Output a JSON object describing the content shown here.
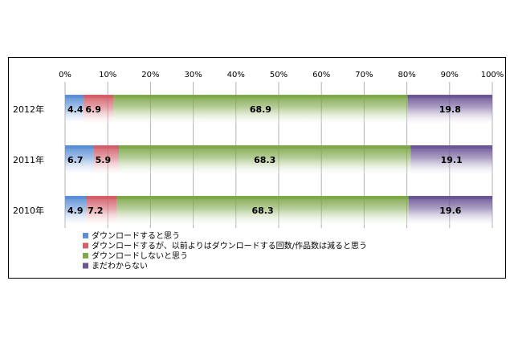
{
  "chart_data": {
    "type": "bar",
    "orientation": "horizontal",
    "stacked": "percent",
    "title": "",
    "xlabel": "",
    "ylabel": "",
    "xlim": [
      0,
      100
    ],
    "ticks": [
      "0%",
      "10%",
      "20%",
      "30%",
      "40%",
      "50%",
      "60%",
      "70%",
      "80%",
      "90%",
      "100%"
    ],
    "grid": true,
    "legend_position": "bottom-left",
    "categories": [
      "2012年",
      "2011年",
      "2010年"
    ],
    "series": [
      {
        "name": "ダウンロードすると思う",
        "color": "#5b8fd6",
        "values": [
          4.4,
          6.7,
          4.9
        ],
        "labels": [
          "4.4",
          "6.7",
          "4.9"
        ]
      },
      {
        "name": "ダウンロードするが、以前よりはダウンロードする回数/作品数は減ると思う",
        "color": "#d35f6a",
        "values": [
          6.9,
          5.9,
          7.2
        ],
        "labels": [
          "6.9",
          "5.9",
          "7.2"
        ]
      },
      {
        "name": "ダウンロードしないと思う",
        "color": "#7ea84b",
        "values": [
          68.9,
          68.3,
          68.3
        ],
        "labels": [
          "68.9",
          "68.3",
          "68.3"
        ]
      },
      {
        "name": "まだわからない",
        "color": "#6c5696",
        "values": [
          19.8,
          19.1,
          19.6
        ],
        "labels": [
          "19.8",
          "19.1",
          "19.6"
        ]
      }
    ]
  }
}
